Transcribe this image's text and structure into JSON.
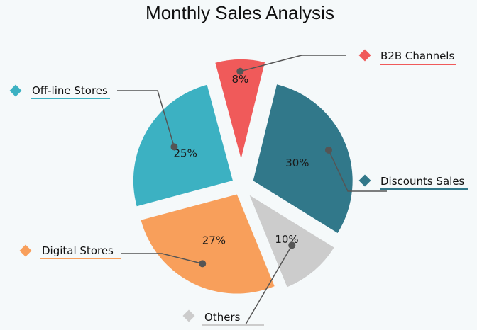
{
  "chart_data": {
    "type": "pie",
    "title": "Monthly Sales Analysis",
    "slices": [
      {
        "label": "B2B Channels",
        "value": 8,
        "display": "8%",
        "color": "#f05a5a",
        "exploded": true
      },
      {
        "label": "Discounts Sales",
        "value": 30,
        "display": "30%",
        "color": "#31788a",
        "exploded": true
      },
      {
        "label": "Others",
        "value": 10,
        "display": "10%",
        "color": "#cccccc",
        "exploded": true
      },
      {
        "label": "Digital Stores",
        "value": 27,
        "display": "27%",
        "color": "#f89f5b",
        "exploded": true
      },
      {
        "label": "Off-line Stores",
        "value": 25,
        "display": "25%",
        "color": "#3cb1c2",
        "exploded": true
      }
    ],
    "legend": "callouts"
  }
}
